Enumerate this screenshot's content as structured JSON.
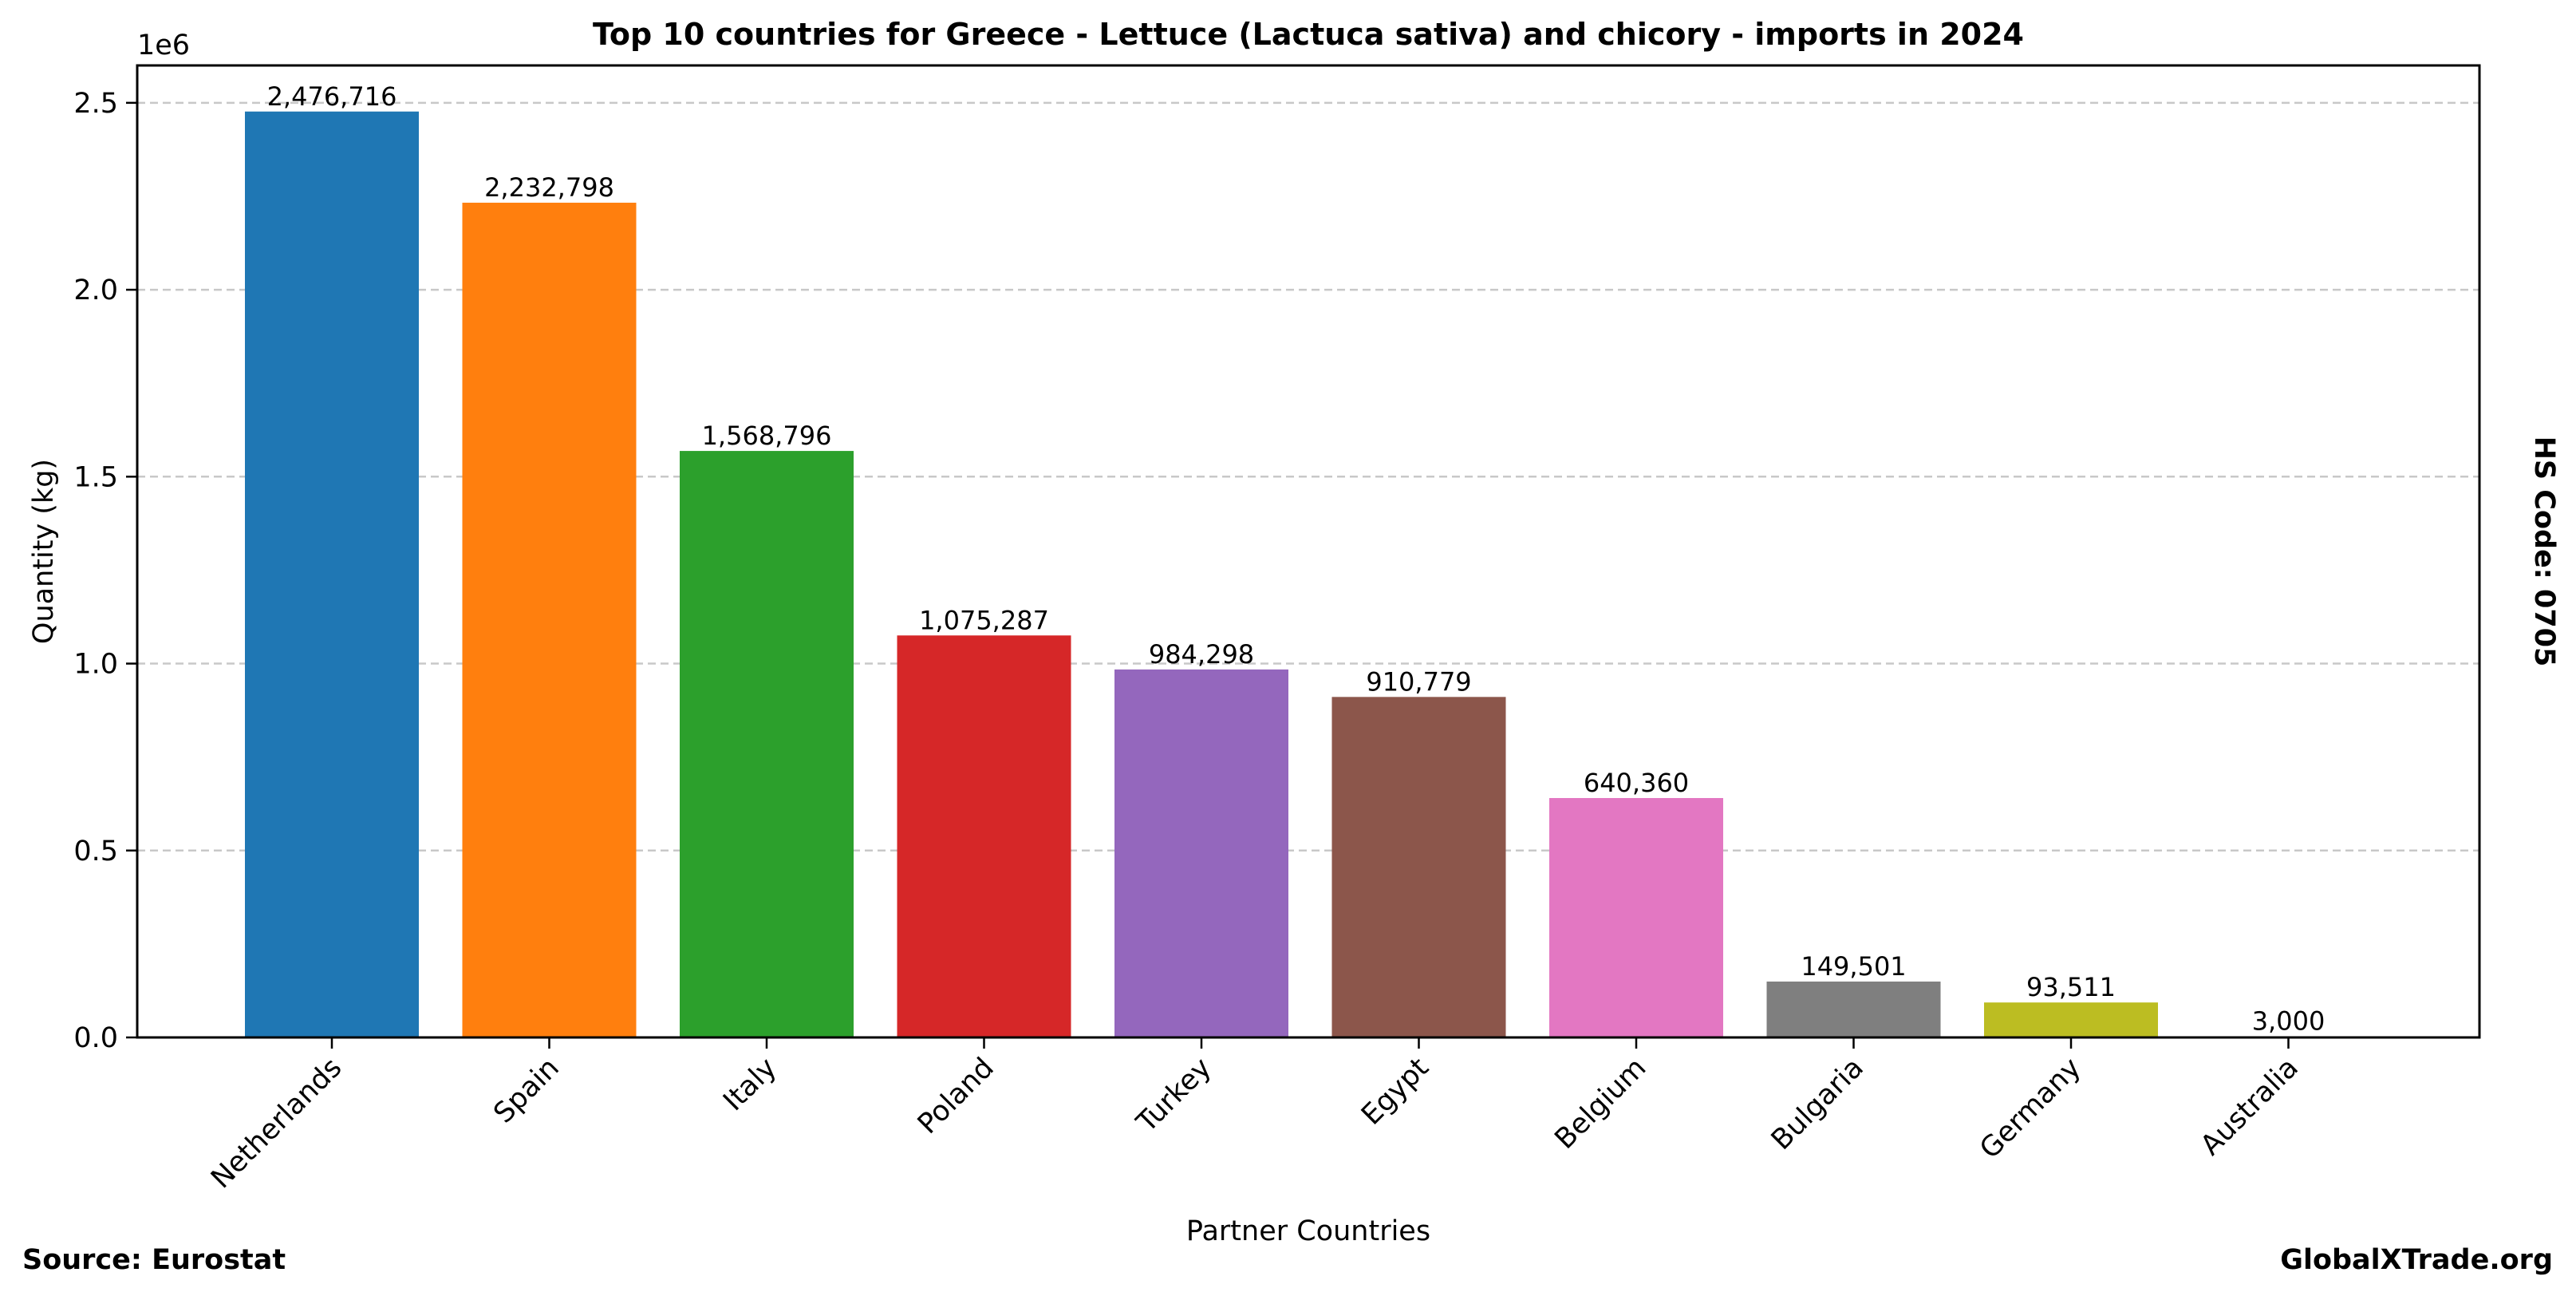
{
  "chart_data": {
    "type": "bar",
    "title": "Top 10 countries for Greece - Lettuce (Lactuca sativa) and chicory - imports in 2024",
    "xlabel": "Partner Countries",
    "ylabel": "Quantity (kg)",
    "y_offset_label": "1e6",
    "ylim": [
      0,
      2600000
    ],
    "yticks": [
      0,
      500000,
      1000000,
      1500000,
      2000000,
      2500000
    ],
    "ytick_labels": [
      "0.0",
      "0.5",
      "1.0",
      "1.5",
      "2.0",
      "2.5"
    ],
    "grid": "y-dashed",
    "categories": [
      "Netherlands",
      "Spain",
      "Italy",
      "Poland",
      "Turkey",
      "Egypt",
      "Belgium",
      "Bulgaria",
      "Germany",
      "Australia"
    ],
    "values": [
      2476716,
      2232798,
      1568796,
      1075287,
      984298,
      910779,
      640360,
      149501,
      93511,
      3000
    ],
    "value_labels": [
      "2,476,716",
      "2,232,798",
      "1,568,796",
      "1,075,287",
      "984,298",
      "910,779",
      "640,360",
      "149,501",
      "93,511",
      "3,000"
    ],
    "colors": [
      "#1f77b4",
      "#ff7f0e",
      "#2ca02c",
      "#d62728",
      "#9467bd",
      "#8c564b",
      "#e377c2",
      "#7f7f7f",
      "#bcbd22",
      "#17becf"
    ]
  },
  "footer": {
    "source": "Source: Eurostat",
    "site": "GlobalXTrade.org",
    "hs_code": "HS Code: 0705"
  }
}
